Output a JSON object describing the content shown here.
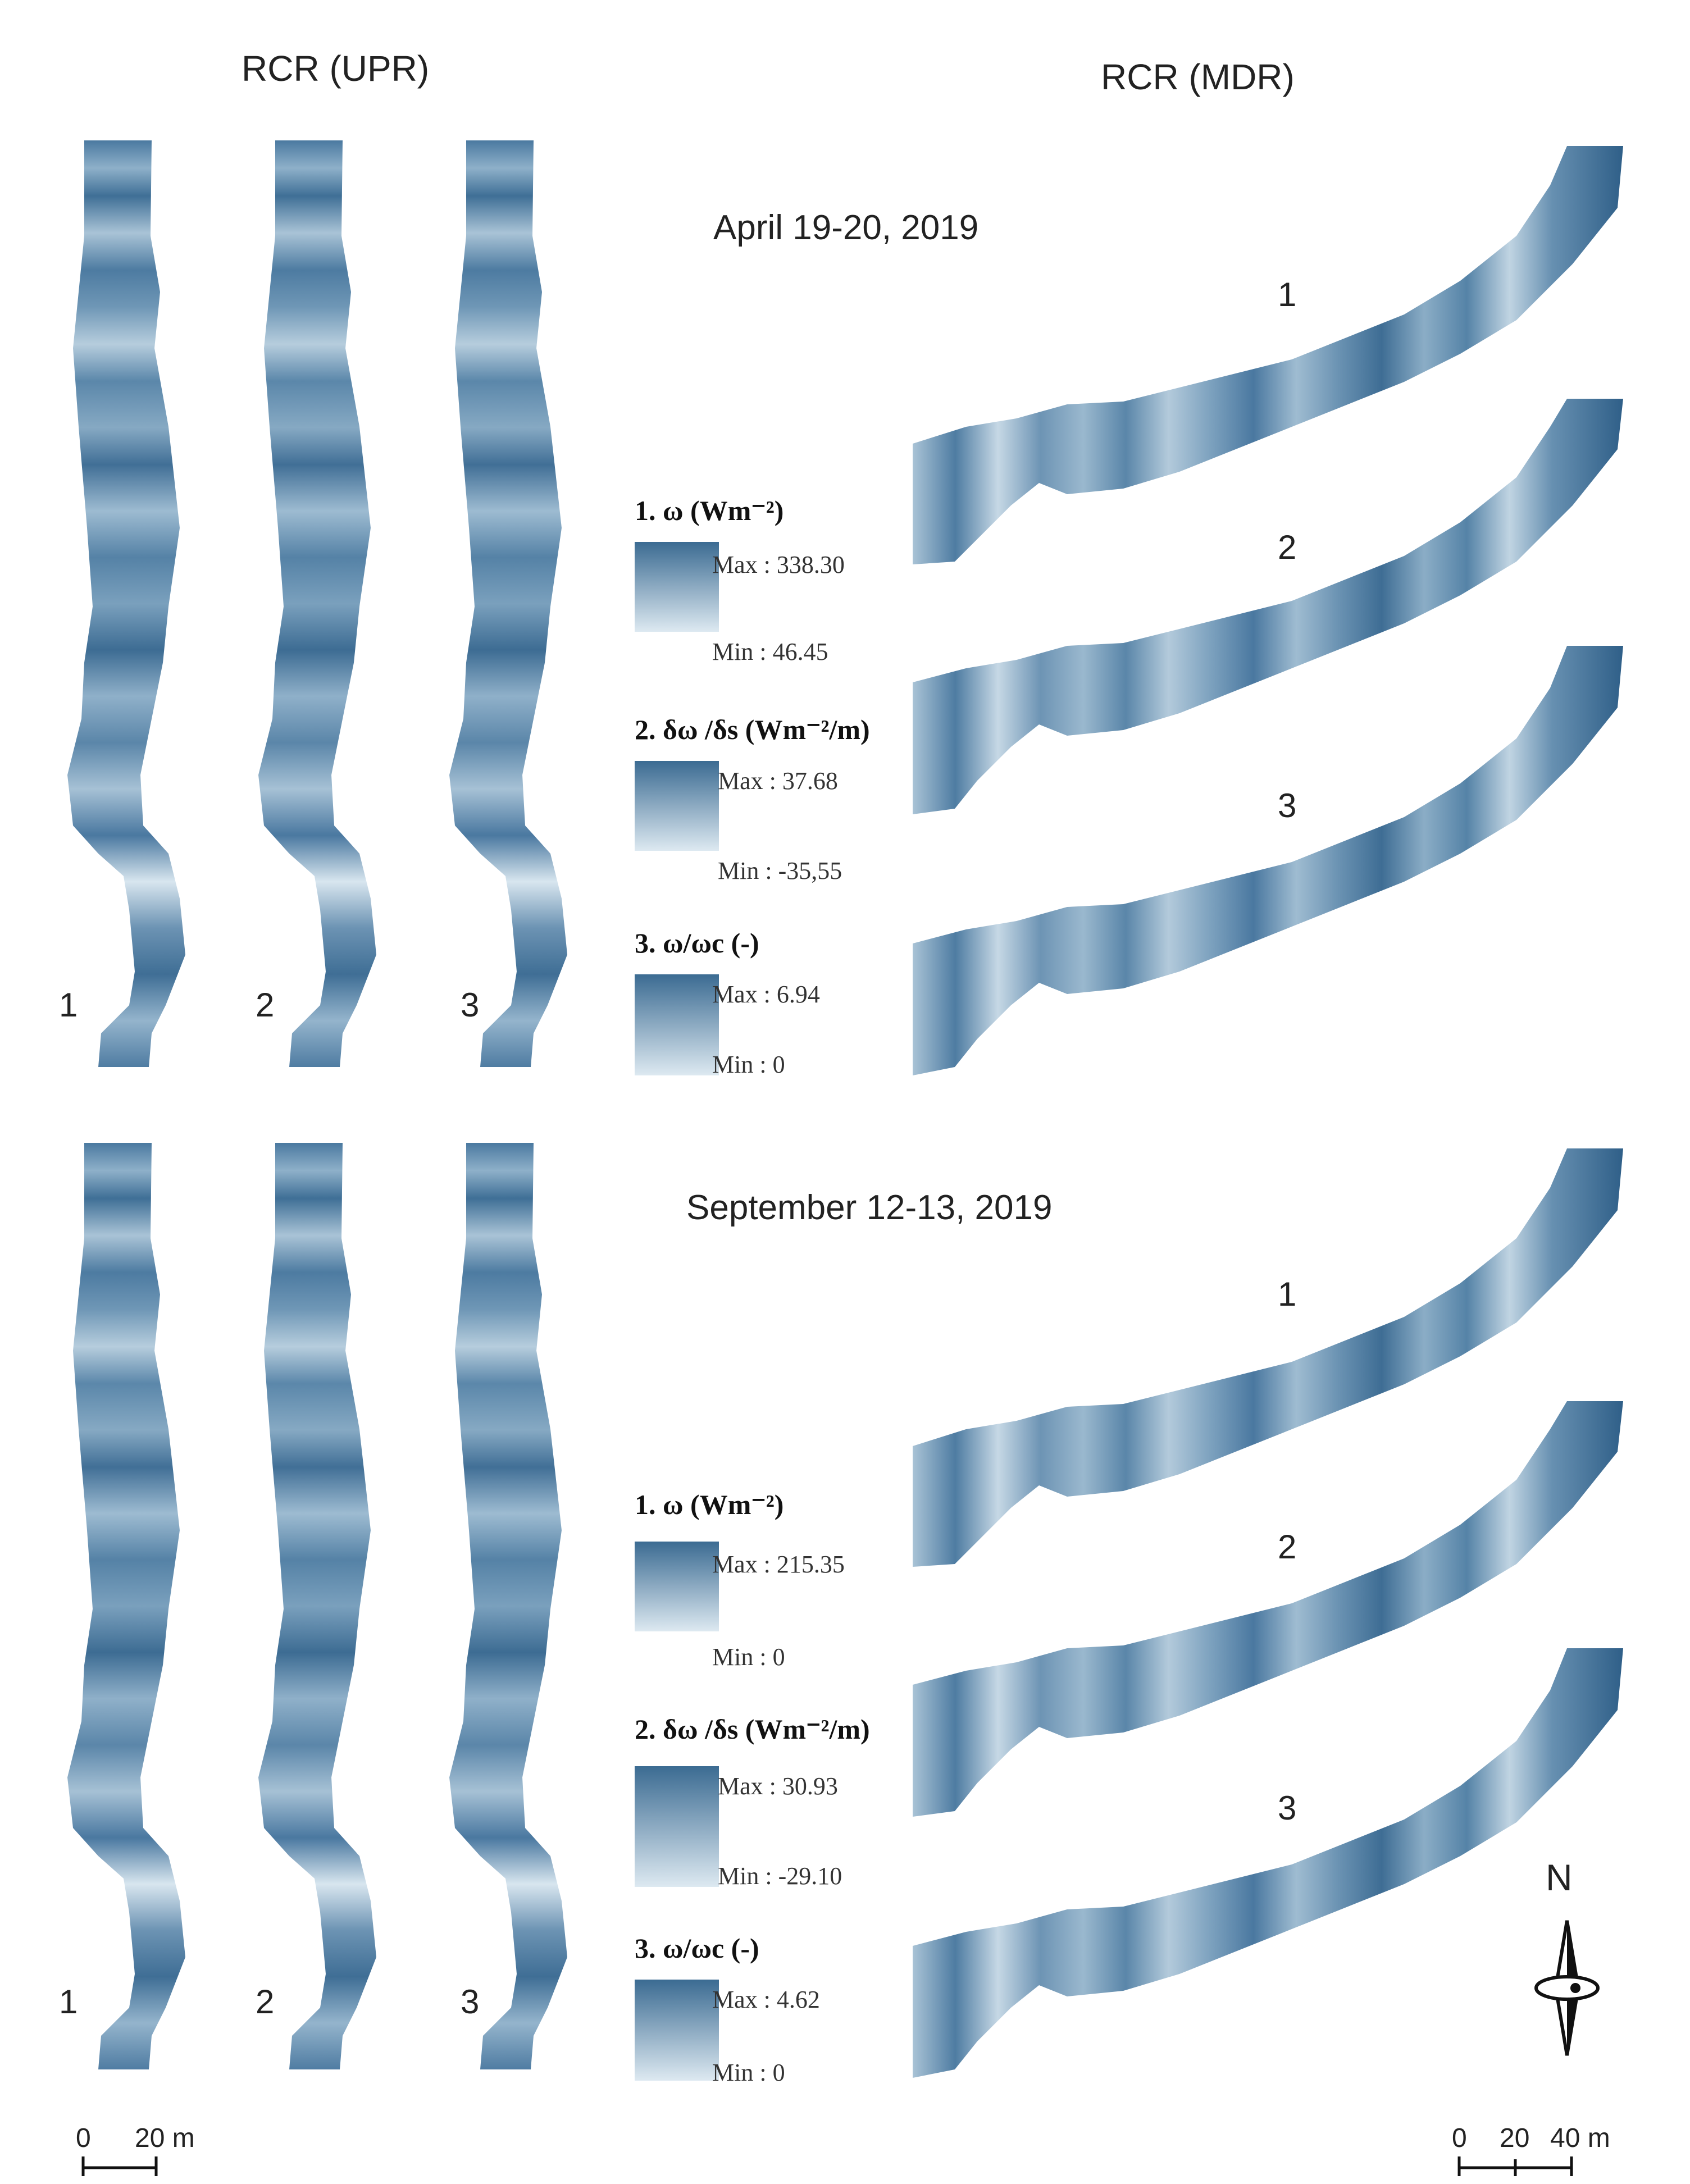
{
  "headers": {
    "left": "RCR (UPR)",
    "right": "RCR (MDR)"
  },
  "colors": {
    "dark": "#3b6b92",
    "mid": "#7ea3c0",
    "light": "#dde9f1"
  },
  "panels": [
    {
      "date": "April 19-20, 2019",
      "strip_labels": [
        "1",
        "2",
        "3"
      ],
      "mdr_labels": [
        "1",
        "2",
        "3"
      ],
      "legend": [
        {
          "title": "1. ω (Wm⁻²)",
          "max": "Max : 338.30",
          "min": "Min : 46.45"
        },
        {
          "title": "2. δω /δs (Wm⁻²/m)",
          "max": "Max : 37.68",
          "min": "Min : -35,55"
        },
        {
          "title": "3. ω/ωc (-)",
          "max": "Max : 6.94",
          "min": "Min : 0"
        }
      ]
    },
    {
      "date": "September 12-13, 2019",
      "strip_labels": [
        "1",
        "2",
        "3"
      ],
      "mdr_labels": [
        "1",
        "2",
        "3"
      ],
      "legend": [
        {
          "title": "1. ω (Wm⁻²)",
          "max": "Max : 215.35",
          "min": "Min : 0"
        },
        {
          "title": "2. δω /δs (Wm⁻²/m)",
          "max": "Max : 30.93",
          "min": "Min : -29.10"
        },
        {
          "title": "3. ω/ωc (-)",
          "max": "Max : 4.62",
          "min": "Min : 0"
        }
      ]
    }
  ],
  "north_label": "N",
  "scalebars": {
    "left": [
      "0",
      "20 m"
    ],
    "right": [
      "0",
      "20",
      "40 m"
    ]
  }
}
